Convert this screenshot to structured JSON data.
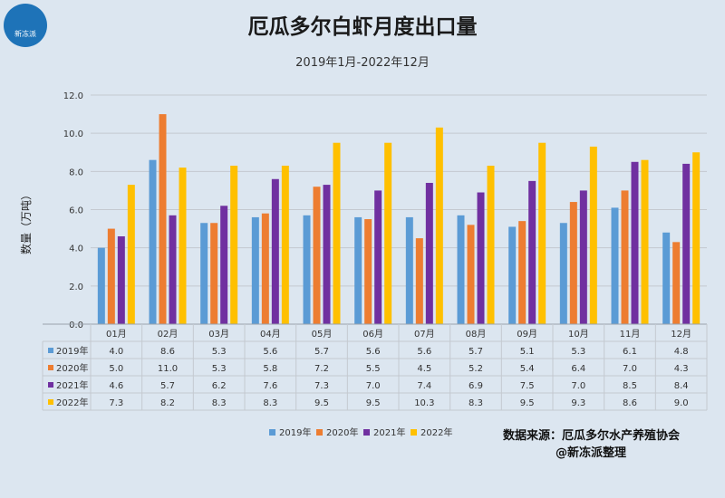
{
  "logo": {
    "icon": "polar-bear-icon",
    "text": "新冻派"
  },
  "source": {
    "line1": "数据来源：厄瓜多尔水产养殖协会",
    "line2": "@新冻派整理"
  },
  "chart_data": {
    "type": "bar",
    "title": "厄瓜多尔白虾月度出口量",
    "subtitle": "2019年1月-2022年12月",
    "ylabel": "数量（万吨）",
    "xlabel": "",
    "ylim": [
      0,
      12
    ],
    "yticks": [
      "0.0",
      "2.0",
      "4.0",
      "6.0",
      "8.0",
      "10.0",
      "12.0"
    ],
    "grid": true,
    "legend_position": "bottom",
    "categories": [
      "01月",
      "02月",
      "03月",
      "04月",
      "05月",
      "06月",
      "07月",
      "08月",
      "09月",
      "10月",
      "11月",
      "12月"
    ],
    "series": [
      {
        "name": "2019年",
        "color": "#5b9bd5",
        "values": [
          4.0,
          8.6,
          5.3,
          5.6,
          5.7,
          5.6,
          5.6,
          5.7,
          5.1,
          5.3,
          6.1,
          4.8
        ]
      },
      {
        "name": "2020年",
        "color": "#ed7d31",
        "values": [
          5.0,
          11.0,
          5.3,
          5.8,
          7.2,
          5.5,
          4.5,
          5.2,
          5.4,
          6.4,
          7.0,
          4.3
        ]
      },
      {
        "name": "2021年",
        "color": "#7030a0",
        "values": [
          4.6,
          5.7,
          6.2,
          7.6,
          7.3,
          7.0,
          7.4,
          6.9,
          7.5,
          7.0,
          8.5,
          8.4
        ]
      },
      {
        "name": "2022年",
        "color": "#ffc000",
        "values": [
          7.3,
          8.2,
          8.3,
          8.3,
          9.5,
          9.5,
          10.3,
          8.3,
          9.5,
          9.3,
          8.6,
          9.0
        ]
      }
    ],
    "table_values": [
      [
        "4.0",
        "8.6",
        "5.3",
        "5.6",
        "5.7",
        "5.6",
        "5.6",
        "5.7",
        "5.1",
        "5.3",
        "6.1",
        "4.8"
      ],
      [
        "5.0",
        "11.0",
        "5.3",
        "5.8",
        "7.2",
        "5.5",
        "4.5",
        "5.2",
        "5.4",
        "6.4",
        "7.0",
        "4.3"
      ],
      [
        "4.6",
        "5.7",
        "6.2",
        "7.6",
        "7.3",
        "7.0",
        "7.4",
        "6.9",
        "7.5",
        "7.0",
        "8.5",
        "8.4"
      ],
      [
        "7.3",
        "8.2",
        "8.3",
        "8.3",
        "9.5",
        "9.5",
        "10.3",
        "8.3",
        "9.5",
        "9.3",
        "8.6",
        "9.0"
      ]
    ]
  }
}
